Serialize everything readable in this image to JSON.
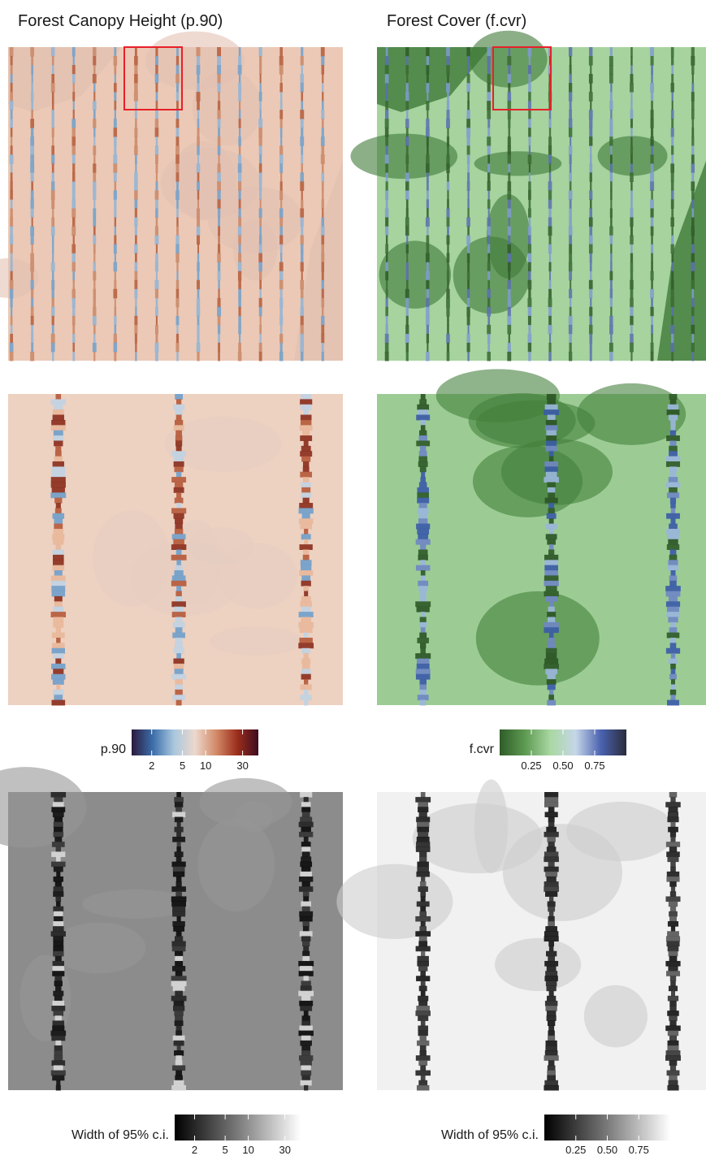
{
  "panels": [
    {
      "title": "Forest Canopy Height (p.90)"
    },
    {
      "title": "Forest Cover (f.cvr)"
    }
  ],
  "colorbars": [
    {
      "label": "p.90",
      "log": true,
      "lim": [
        1.1,
        48
      ],
      "ticks": [
        2,
        5,
        10,
        30
      ],
      "colors": [
        "#2c1a3e",
        "#3b6eaa",
        "#a9c7de",
        "#ecd8cd",
        "#d38a68",
        "#9c2e1c",
        "#3d0b20"
      ]
    },
    {
      "label": "f.cvr",
      "log": false,
      "lim": [
        0,
        1
      ],
      "ticks": [
        0.25,
        {
          "value": 0.5,
          "label": "0.50"
        },
        0.75
      ],
      "colors": [
        "#2f5c28",
        "#5e9a52",
        "#a9d8a2",
        "#c6d6e8",
        "#4a62b0",
        "#2a2c3a"
      ]
    },
    {
      "label": "Width of 95% c.i.",
      "log": true,
      "lim": [
        1.1,
        48
      ],
      "ticks": [
        2,
        5,
        10,
        30
      ],
      "colors": [
        "#000000",
        "#7a7a7a",
        "#ffffff"
      ]
    },
    {
      "label": "Width of 95% c.i.",
      "log": false,
      "lim": [
        0,
        1
      ],
      "ticks": [
        0.25,
        {
          "value": 0.5,
          "label": "0.50"
        },
        0.75
      ],
      "colors": [
        "#000000",
        "#7a7a7a",
        "#ffffff"
      ]
    }
  ]
}
